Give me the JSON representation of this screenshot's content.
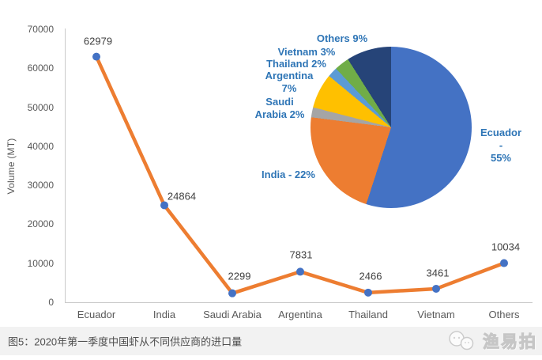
{
  "figure": {
    "caption": "图5：2020年第一季度中国虾从不同供应商的进口量",
    "watermark": {
      "text": "渔易拍",
      "icon": "bubbles-logo-icon"
    }
  },
  "chart_data": [
    {
      "type": "line",
      "title": "",
      "xlabel": "",
      "ylabel": "Volume (MT)",
      "categories": [
        "Ecuador",
        "India",
        "Saudi Arabia",
        "Argentina",
        "Thailand",
        "Vietnam",
        "Others"
      ],
      "values": [
        62979,
        24864,
        2299,
        7831,
        2466,
        3461,
        10034
      ],
      "ylim": [
        0,
        70000
      ],
      "yticks": [
        70000,
        60000,
        50000,
        40000,
        30000,
        20000,
        10000,
        0
      ],
      "grid": false,
      "legend": false,
      "data_labels": true,
      "line_color": "#ED7D31",
      "marker_color": "#4472C4",
      "axis_color": "#C9C9C9",
      "tick_color": "#595959",
      "data_label_color": "#404040"
    },
    {
      "type": "pie",
      "start_angle_deg": 0,
      "direction": "clockwise",
      "label_color": "#2E75B6",
      "slices": [
        {
          "name": "Ecuador",
          "pct": 55,
          "color": "#4472C4",
          "label": "Ecuador -\n55%"
        },
        {
          "name": "India",
          "pct": 22,
          "color": "#ED7D31",
          "label": "India - 22%"
        },
        {
          "name": "Saudi Arabia",
          "pct": 2,
          "color": "#A5A5A5",
          "label": "Saudi\nArabia 2%"
        },
        {
          "name": "Argentina",
          "pct": 7,
          "color": "#FFC000",
          "label": "Argentina\n7%"
        },
        {
          "name": "Thailand",
          "pct": 2,
          "color": "#5B9BD5",
          "label": "Thailand 2%"
        },
        {
          "name": "Vietnam",
          "pct": 3,
          "color": "#70AD47",
          "label": "Vietnam 3%"
        },
        {
          "name": "Others",
          "pct": 9,
          "color": "#264478",
          "label": "Others 9%"
        }
      ]
    }
  ]
}
